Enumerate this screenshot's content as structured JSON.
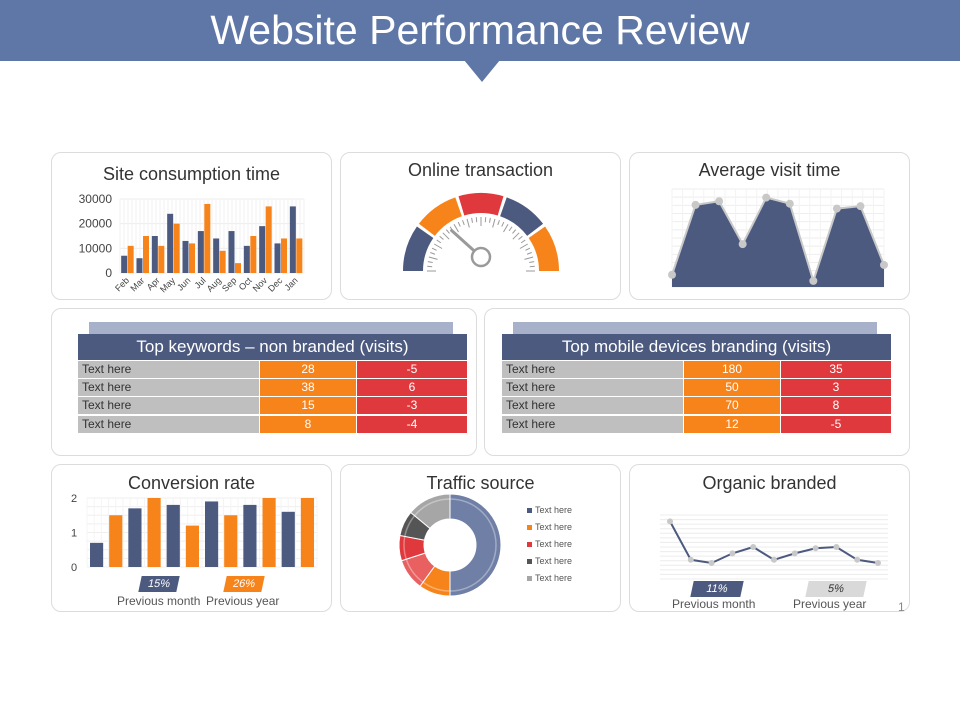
{
  "title": "Website Performance Review",
  "page_number": "1",
  "colors": {
    "navy": "#4c5a7f",
    "orange": "#f7841b",
    "red": "#e0393d",
    "gray": "#bfbfbf",
    "banner": "#5f77a6"
  },
  "site_consumption": {
    "title": "Site consumption time",
    "chart_data": {
      "type": "bar",
      "categories": [
        "Feb",
        "Mar",
        "Apr",
        "May",
        "Jun",
        "Jul",
        "Aug",
        "Sep",
        "Oct",
        "Nov",
        "Dec",
        "Jan"
      ],
      "series": [
        {
          "color": "#4c5a7f",
          "values": [
            7000,
            6000,
            15000,
            24000,
            13000,
            17000,
            14000,
            17000,
            11000,
            19000,
            12000,
            27000
          ]
        },
        {
          "color": "#f7841b",
          "values": [
            11000,
            15000,
            11000,
            20000,
            12000,
            28000,
            9000,
            4000,
            15000,
            27000,
            14000,
            14000
          ]
        }
      ],
      "yticks": [
        "0",
        "10000",
        "20000",
        "30000"
      ],
      "ylim": [
        0,
        30000
      ]
    }
  },
  "online_transaction": {
    "title": "Online transaction",
    "chart_data": {
      "type": "gauge",
      "segments": [
        "#4c5a7f",
        "#f7841b",
        "#e0393d",
        "#4c5a7f",
        "#f7841b"
      ],
      "needle_fraction": 0.3
    }
  },
  "average_visit": {
    "title": "Average visit time",
    "chart_data": {
      "type": "area",
      "values": [
        1,
        6.7,
        7,
        3.5,
        7.3,
        6.8,
        0.5,
        6.4,
        6.6,
        1.8
      ],
      "ylim": [
        0,
        8
      ]
    }
  },
  "keywords_table": {
    "header": "Top keywords – non branded (visits)",
    "rows": [
      {
        "label": "Text here",
        "a": "28",
        "b": "-5"
      },
      {
        "label": "Text here",
        "a": "38",
        "b": "6"
      },
      {
        "label": "Text here",
        "a": "15",
        "b": "-3"
      },
      {
        "label": "Text here",
        "a": "8",
        "b": "-4"
      }
    ]
  },
  "mobile_table": {
    "header": "Top mobile devices branding (visits)",
    "rows": [
      {
        "label": "Text here",
        "a": "180",
        "b": "35"
      },
      {
        "label": "Text here",
        "a": "50",
        "b": "3"
      },
      {
        "label": "Text here",
        "a": "70",
        "b": "8"
      },
      {
        "label": "Text here",
        "a": "12",
        "b": "-5"
      }
    ]
  },
  "conversion": {
    "title": "Conversion rate",
    "chart_data": {
      "type": "bar",
      "values": [
        0.7,
        1.5,
        1.7,
        2.0,
        1.8,
        1.2,
        1.9,
        1.5,
        1.8,
        2.0,
        1.6,
        2.0
      ],
      "colors": [
        "#4c5a7f",
        "#f7841b",
        "#4c5a7f",
        "#f7841b",
        "#4c5a7f",
        "#f7841b",
        "#4c5a7f",
        "#f7841b",
        "#4c5a7f",
        "#f7841b",
        "#4c5a7f",
        "#f7841b"
      ],
      "yticks": [
        "0",
        "1",
        "2"
      ],
      "ylim": [
        0,
        2
      ]
    },
    "badge_month": "15%",
    "badge_year": "26%",
    "caption_month": "Previous month",
    "caption_year": "Previous year"
  },
  "traffic": {
    "title": "Traffic source",
    "chart_data": {
      "type": "pie",
      "slices": [
        {
          "value": 50,
          "color": "#6f7fa6"
        },
        {
          "value": 10,
          "color": "#f7841b"
        },
        {
          "value": 10,
          "color": "#e86060"
        },
        {
          "value": 8,
          "color": "#e0393d"
        },
        {
          "value": 8,
          "color": "#555555"
        },
        {
          "value": 14,
          "color": "#a6a6a6"
        }
      ]
    },
    "legend": [
      {
        "label": "Text here",
        "color": "#4c5a7f"
      },
      {
        "label": "Text here",
        "color": "#f7841b"
      },
      {
        "label": "Text here",
        "color": "#e0393d"
      },
      {
        "label": "Text here",
        "color": "#555555"
      },
      {
        "label": "Text here",
        "color": "#a6a6a6"
      }
    ]
  },
  "organic": {
    "title": "Organic branded",
    "chart_data": {
      "type": "line",
      "values": [
        9,
        3,
        2.5,
        4,
        5,
        3,
        4,
        4.8,
        5,
        3,
        2.5
      ],
      "ylim": [
        0,
        10
      ]
    },
    "badge_month": "11%",
    "badge_year": "5%",
    "caption_month": "Previous month",
    "caption_year": "Previous year"
  }
}
